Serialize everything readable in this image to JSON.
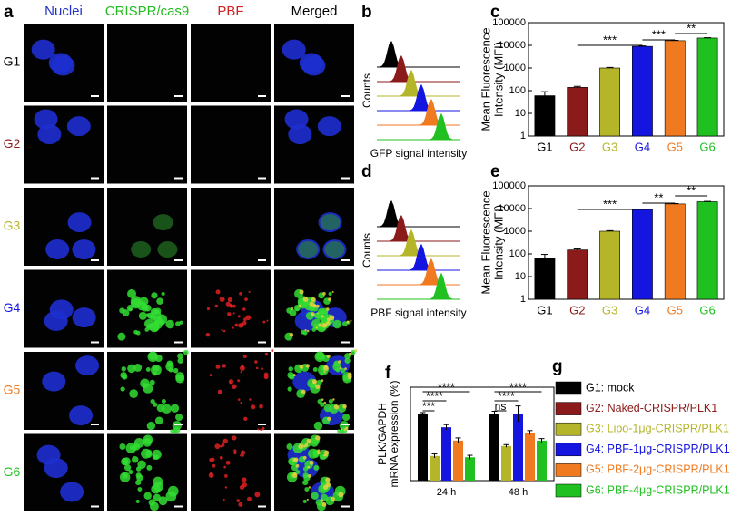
{
  "panel_labels": [
    "a",
    "b",
    "c",
    "d",
    "e",
    "f",
    "g"
  ],
  "microscopy": {
    "columns": [
      "Nuclei",
      "CRISPR/cas9",
      "PBF",
      "Merged"
    ],
    "column_colors": [
      "#2233cc",
      "#22bb22",
      "#cc2222",
      "#000000"
    ],
    "rows": [
      "G1",
      "G2",
      "G3",
      "G4",
      "G5",
      "G6"
    ],
    "row_colors": [
      "#000000",
      "#8b1a1a",
      "#b5b52a",
      "#1515e0",
      "#f07a20",
      "#20c020"
    ]
  },
  "flow_b": {
    "ylabel": "Counts",
    "xlabel": "GFP signal intensity"
  },
  "flow_d": {
    "ylabel": "Counts",
    "xlabel": "PBF signal intensity"
  },
  "chart_data": [
    {
      "type": "log_bar",
      "categories": [
        "G1",
        "G2",
        "G3",
        "G4",
        "G5",
        "G6"
      ],
      "values": [
        60,
        140,
        1000,
        9000,
        16000,
        21000
      ],
      "errors": [
        30,
        15,
        60,
        400,
        600,
        700
      ],
      "colors": [
        "#000000",
        "#8b1a1a",
        "#b5b52a",
        "#1515e0",
        "#f07a20",
        "#20c020"
      ],
      "ylabel": [
        "Mean Fluorescence",
        "Intensity (MFI)"
      ],
      "log_scale": true,
      "ylim": [
        1,
        100000
      ],
      "yticks": [
        1,
        10,
        100,
        1000,
        10000,
        100000
      ],
      "annotations": [
        "***",
        "***",
        "**"
      ]
    },
    {
      "type": "log_bar",
      "categories": [
        "G1",
        "G2",
        "G3",
        "G4",
        "G5",
        "G6"
      ],
      "values": [
        65,
        150,
        1000,
        9000,
        16000,
        20000
      ],
      "errors": [
        30,
        15,
        60,
        400,
        600,
        700
      ],
      "colors": [
        "#000000",
        "#8b1a1a",
        "#b5b52a",
        "#1515e0",
        "#f07a20",
        "#20c020"
      ],
      "ylabel": [
        "Mean Fluorescence",
        "Intensity (MFI)"
      ],
      "log_scale": true,
      "ylim": [
        1,
        100000
      ],
      "yticks": [
        1,
        10,
        100,
        1000,
        10000,
        100000
      ],
      "annotations": [
        "***",
        "**",
        "**"
      ]
    },
    {
      "type": "grouped_bar",
      "categories": [
        "24 h",
        "48 h"
      ],
      "ylabel": [
        "PLK/GAPDH",
        "mRNA expression (%)"
      ],
      "ylim": [
        0,
        140
      ],
      "series": [
        {
          "name": "G1: mock",
          "color": "#000000",
          "values": [
            100,
            100
          ],
          "errors": [
            2,
            4
          ]
        },
        {
          "name": "G2: Naked-CRISPR/PLK1",
          "color": "#8b1a1a",
          "values": [
            null,
            null
          ],
          "errors": [
            null,
            null
          ]
        },
        {
          "name": "G3: Lipo-1μg-CRISPR/PLK1",
          "color": "#b5b52a",
          "values": [
            37,
            52
          ],
          "errors": [
            3,
            2
          ]
        },
        {
          "name": "G4: PBF-1μg-CRISPR/PLK1",
          "color": "#1515e0",
          "values": [
            80,
            100
          ],
          "errors": [
            4,
            12
          ]
        },
        {
          "name": "G5: PBF-2μg-CRISPR/PLK1",
          "color": "#f07a20",
          "values": [
            60,
            72
          ],
          "errors": [
            4,
            3
          ]
        },
        {
          "name": "G6: PBF-4μg-CRISPR/PLK1",
          "color": "#20c020",
          "values": [
            35,
            60
          ],
          "errors": [
            3,
            3
          ]
        }
      ],
      "annotations": [
        [
          "***",
          "****",
          "****"
        ],
        [
          "ns",
          "****",
          "****"
        ]
      ]
    }
  ]
}
